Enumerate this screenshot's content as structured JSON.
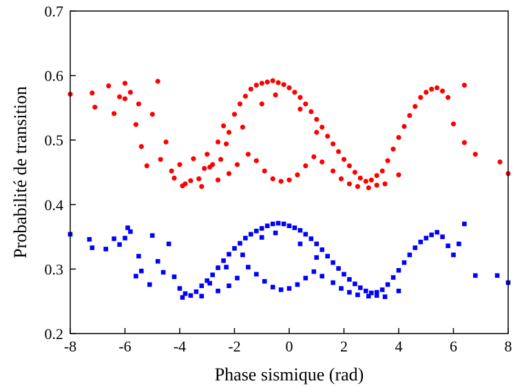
{
  "chart_data": {
    "type": "scatter",
    "xlabel": "Phase sismique (rad)",
    "ylabel": "Probabilité de transition",
    "xlim": [
      -8,
      8
    ],
    "ylim": [
      0.2,
      0.7
    ],
    "xticks": [
      -8,
      -6,
      -4,
      -2,
      0,
      2,
      4,
      6,
      8
    ],
    "yticks": [
      0.2,
      0.3,
      0.4,
      0.5,
      0.6,
      0.7
    ],
    "grid": false,
    "legend": "none",
    "series": [
      {
        "color": "#ff0000",
        "marker": "circle",
        "shape": "peak centered near -0.5 rad at about 0.59, lower envelope dipping to about 0.43 near -3.5 and +2.5 rad, with a hollow notch near 0 rad; sparse points at edges up to about 0.59",
        "points": [
          [
            -8.0,
            0.571
          ],
          [
            -7.2,
            0.573
          ],
          [
            -7.1,
            0.551
          ],
          [
            -6.6,
            0.584
          ],
          [
            -6.4,
            0.541
          ],
          [
            -6.2,
            0.567
          ],
          [
            -6.0,
            0.588
          ],
          [
            -6.0,
            0.564
          ],
          [
            -5.8,
            0.574
          ],
          [
            -5.6,
            0.524
          ],
          [
            -5.5,
            0.556
          ],
          [
            -5.4,
            0.49
          ],
          [
            -5.2,
            0.46
          ],
          [
            -5.0,
            0.54
          ],
          [
            -4.8,
            0.591
          ],
          [
            -4.7,
            0.47
          ],
          [
            -4.5,
            0.497
          ],
          [
            -4.3,
            0.452
          ],
          [
            -4.2,
            0.441
          ],
          [
            -4.0,
            0.462
          ],
          [
            -3.8,
            0.432
          ],
          [
            -3.6,
            0.437
          ],
          [
            -3.5,
            0.471
          ],
          [
            -3.3,
            0.44
          ],
          [
            -3.1,
            0.456
          ],
          [
            -3.0,
            0.478
          ],
          [
            -2.8,
            0.462
          ],
          [
            -2.6,
            0.497
          ],
          [
            -2.5,
            0.47
          ],
          [
            -2.4,
            0.522
          ],
          [
            -2.2,
            0.512
          ],
          [
            -2.0,
            0.54
          ],
          [
            -1.8,
            0.556
          ],
          [
            -1.6,
            0.568
          ],
          [
            -1.4,
            0.579
          ],
          [
            -1.2,
            0.585
          ],
          [
            -1.0,
            0.588
          ],
          [
            -0.8,
            0.59
          ],
          [
            -0.6,
            0.592
          ],
          [
            -0.4,
            0.589
          ],
          [
            -0.2,
            0.586
          ],
          [
            0.0,
            0.581
          ],
          [
            0.2,
            0.574
          ],
          [
            0.4,
            0.566
          ],
          [
            0.6,
            0.556
          ],
          [
            0.8,
            0.544
          ],
          [
            1.0,
            0.532
          ],
          [
            1.2,
            0.52
          ],
          [
            1.4,
            0.506
          ],
          [
            1.6,
            0.494
          ],
          [
            1.8,
            0.482
          ],
          [
            2.0,
            0.47
          ],
          [
            2.2,
            0.46
          ],
          [
            2.4,
            0.45
          ],
          [
            2.6,
            0.441
          ],
          [
            2.8,
            0.436
          ],
          [
            3.0,
            0.438
          ],
          [
            3.2,
            0.445
          ],
          [
            3.4,
            0.452
          ],
          [
            3.6,
            0.468
          ],
          [
            3.8,
            0.486
          ],
          [
            4.0,
            0.504
          ],
          [
            4.2,
            0.521
          ],
          [
            4.4,
            0.538
          ],
          [
            4.6,
            0.552
          ],
          [
            4.8,
            0.566
          ],
          [
            5.0,
            0.574
          ],
          [
            5.2,
            0.579
          ],
          [
            5.4,
            0.581
          ],
          [
            5.6,
            0.576
          ],
          [
            5.8,
            0.566
          ],
          [
            6.0,
            0.525
          ],
          [
            6.4,
            0.585
          ],
          [
            6.4,
            0.496
          ],
          [
            6.8,
            0.478
          ],
          [
            7.7,
            0.466
          ],
          [
            8.0,
            0.448
          ],
          [
            -1.5,
            0.478
          ],
          [
            -1.2,
            0.468
          ],
          [
            -0.9,
            0.452
          ],
          [
            -0.6,
            0.44
          ],
          [
            -0.3,
            0.436
          ],
          [
            0.0,
            0.438
          ],
          [
            0.3,
            0.446
          ],
          [
            0.6,
            0.46
          ],
          [
            0.9,
            0.474
          ],
          [
            1.2,
            0.466
          ],
          [
            1.6,
            0.452
          ],
          [
            1.9,
            0.44
          ],
          [
            2.2,
            0.432
          ],
          [
            2.5,
            0.428
          ],
          [
            2.9,
            0.426
          ],
          [
            3.2,
            0.43
          ],
          [
            -2.6,
            0.438
          ],
          [
            -2.2,
            0.448
          ],
          [
            -1.9,
            0.462
          ],
          [
            -3.2,
            0.428
          ],
          [
            -3.9,
            0.429
          ],
          [
            -1.0,
            0.556
          ],
          [
            -0.5,
            0.57
          ],
          [
            0.4,
            0.548
          ],
          [
            1.0,
            0.512
          ],
          [
            -1.7,
            0.52
          ],
          [
            -2.3,
            0.494
          ],
          [
            -2.9,
            0.458
          ],
          [
            3.5,
            0.432
          ],
          [
            4.0,
            0.446
          ]
        ]
      },
      {
        "color": "#0000ff",
        "marker": "square",
        "shape": "peak centered near -0.5 rad at about 0.37, lower envelope dipping to about 0.26 near -3.5 and +2.5 rad, with a hollow notch near 0 rad; sparse points at edges up to about 0.37",
        "points": [
          [
            -8.0,
            0.354
          ],
          [
            -7.3,
            0.346
          ],
          [
            -7.2,
            0.333
          ],
          [
            -6.7,
            0.331
          ],
          [
            -6.4,
            0.347
          ],
          [
            -6.2,
            0.338
          ],
          [
            -6.0,
            0.348
          ],
          [
            -5.9,
            0.364
          ],
          [
            -5.8,
            0.358
          ],
          [
            -5.6,
            0.289
          ],
          [
            -5.5,
            0.32
          ],
          [
            -5.4,
            0.297
          ],
          [
            -5.1,
            0.276
          ],
          [
            -5.0,
            0.352
          ],
          [
            -4.8,
            0.312
          ],
          [
            -4.6,
            0.295
          ],
          [
            -4.4,
            0.339
          ],
          [
            -4.2,
            0.288
          ],
          [
            -4.0,
            0.27
          ],
          [
            -3.8,
            0.262
          ],
          [
            -3.6,
            0.259
          ],
          [
            -3.4,
            0.265
          ],
          [
            -3.2,
            0.274
          ],
          [
            -3.0,
            0.282
          ],
          [
            -2.8,
            0.291
          ],
          [
            -2.6,
            0.302
          ],
          [
            -2.4,
            0.313
          ],
          [
            -2.2,
            0.323
          ],
          [
            -2.0,
            0.332
          ],
          [
            -1.8,
            0.34
          ],
          [
            -1.6,
            0.348
          ],
          [
            -1.4,
            0.354
          ],
          [
            -1.2,
            0.359
          ],
          [
            -1.0,
            0.363
          ],
          [
            -0.8,
            0.367
          ],
          [
            -0.6,
            0.37
          ],
          [
            -0.4,
            0.371
          ],
          [
            -0.2,
            0.37
          ],
          [
            0.0,
            0.367
          ],
          [
            0.2,
            0.364
          ],
          [
            0.4,
            0.36
          ],
          [
            0.6,
            0.354
          ],
          [
            0.8,
            0.347
          ],
          [
            1.0,
            0.339
          ],
          [
            1.2,
            0.33
          ],
          [
            1.4,
            0.32
          ],
          [
            1.6,
            0.31
          ],
          [
            1.8,
            0.301
          ],
          [
            2.0,
            0.292
          ],
          [
            2.2,
            0.284
          ],
          [
            2.4,
            0.277
          ],
          [
            2.6,
            0.271
          ],
          [
            2.8,
            0.266
          ],
          [
            3.0,
            0.263
          ],
          [
            3.2,
            0.264
          ],
          [
            3.4,
            0.268
          ],
          [
            3.6,
            0.276
          ],
          [
            3.8,
            0.287
          ],
          [
            4.0,
            0.298
          ],
          [
            4.2,
            0.31
          ],
          [
            4.4,
            0.322
          ],
          [
            4.6,
            0.333
          ],
          [
            4.8,
            0.342
          ],
          [
            5.0,
            0.348
          ],
          [
            5.2,
            0.353
          ],
          [
            5.4,
            0.357
          ],
          [
            5.6,
            0.35
          ],
          [
            5.8,
            0.336
          ],
          [
            6.0,
            0.322
          ],
          [
            6.2,
            0.339
          ],
          [
            6.4,
            0.37
          ],
          [
            6.8,
            0.29
          ],
          [
            7.6,
            0.29
          ],
          [
            8.0,
            0.279
          ],
          [
            -1.5,
            0.303
          ],
          [
            -1.2,
            0.292
          ],
          [
            -0.9,
            0.281
          ],
          [
            -0.6,
            0.272
          ],
          [
            -0.3,
            0.268
          ],
          [
            0.0,
            0.27
          ],
          [
            0.3,
            0.276
          ],
          [
            0.6,
            0.286
          ],
          [
            0.9,
            0.296
          ],
          [
            1.2,
            0.289
          ],
          [
            1.6,
            0.279
          ],
          [
            1.9,
            0.27
          ],
          [
            2.2,
            0.264
          ],
          [
            2.5,
            0.26
          ],
          [
            2.9,
            0.258
          ],
          [
            3.2,
            0.259
          ],
          [
            -2.6,
            0.266
          ],
          [
            -2.2,
            0.274
          ],
          [
            -1.9,
            0.286
          ],
          [
            -3.2,
            0.258
          ],
          [
            -3.9,
            0.256
          ],
          [
            -1.0,
            0.349
          ],
          [
            -0.5,
            0.356
          ],
          [
            0.4,
            0.339
          ],
          [
            1.0,
            0.318
          ],
          [
            -1.7,
            0.322
          ],
          [
            -2.3,
            0.303
          ],
          [
            -2.9,
            0.278
          ],
          [
            3.5,
            0.257
          ],
          [
            4.0,
            0.266
          ]
        ]
      }
    ]
  }
}
